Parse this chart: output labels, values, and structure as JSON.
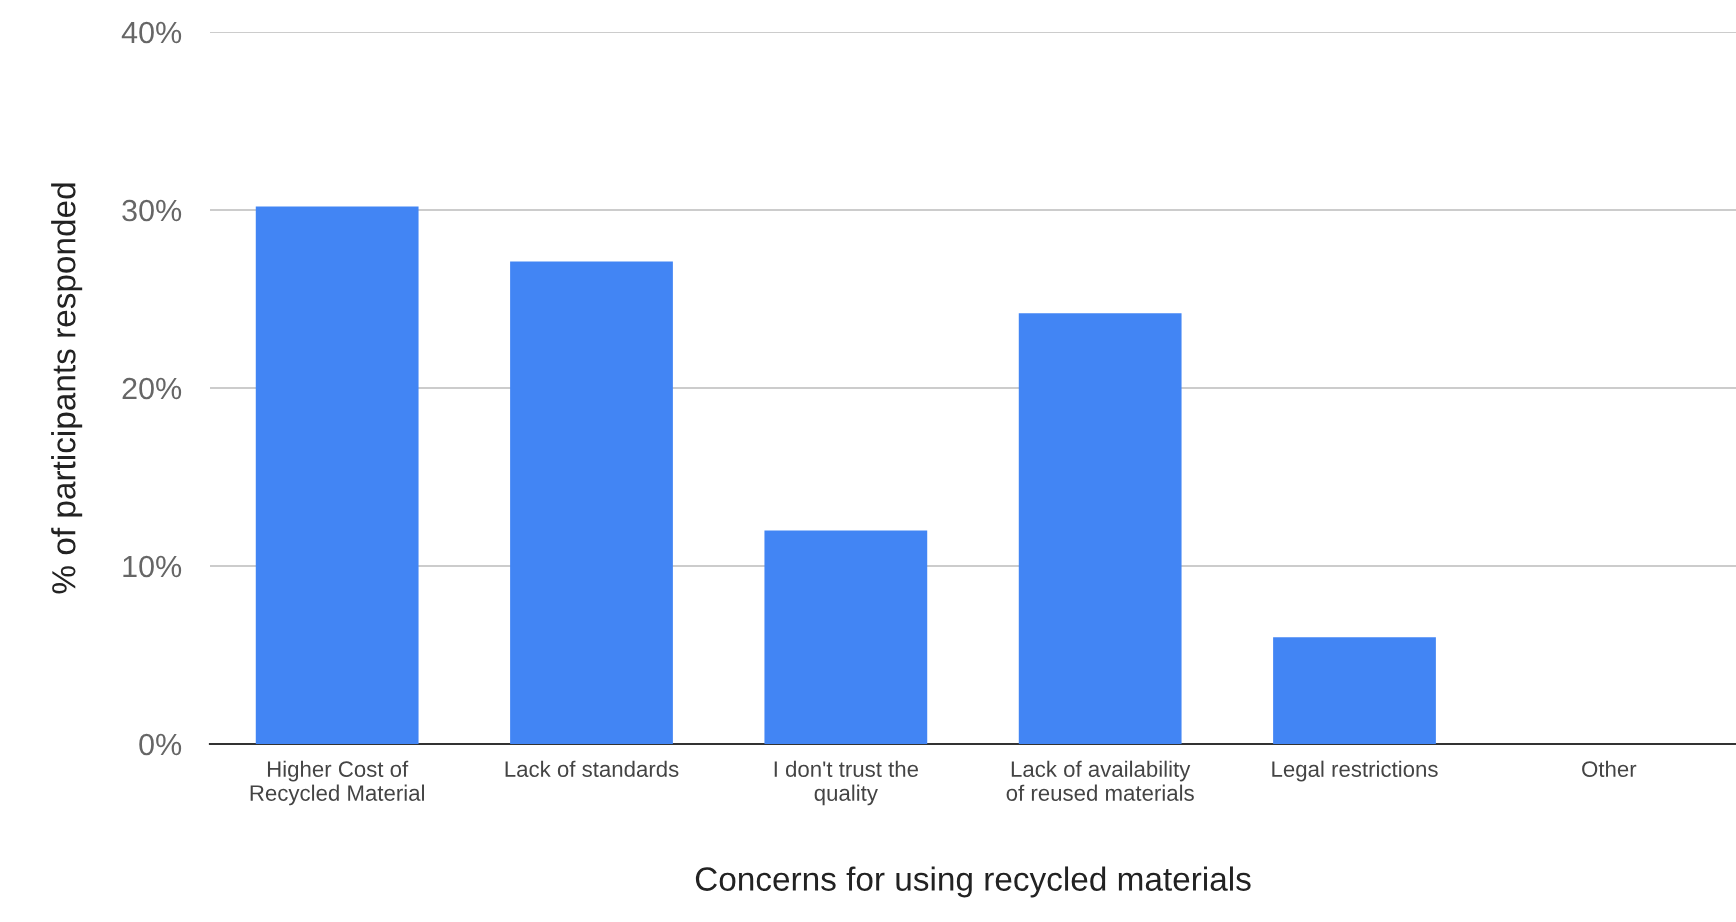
{
  "chart_data": {
    "type": "bar",
    "xlabel": "Concerns for using recycled materials",
    "ylabel": "% of participants responded",
    "categories": [
      "Higher Cost of\nRecycled Material",
      "Lack of standards",
      "I don't trust the\nquality",
      "Lack of availability\nof reused materials",
      "Legal restrictions",
      "Other"
    ],
    "values": [
      30.2,
      27.1,
      12.0,
      24.2,
      6.0,
      0
    ],
    "color": "#4285f4",
    "ylim": [
      0,
      40
    ],
    "yticks": [
      {
        "value": 0,
        "label": "0%"
      },
      {
        "value": 10,
        "label": "10%"
      },
      {
        "value": 20,
        "label": "20%"
      },
      {
        "value": 30,
        "label": "30%"
      },
      {
        "value": 40,
        "label": "40%"
      }
    ],
    "grid": "y",
    "legend": false
  }
}
